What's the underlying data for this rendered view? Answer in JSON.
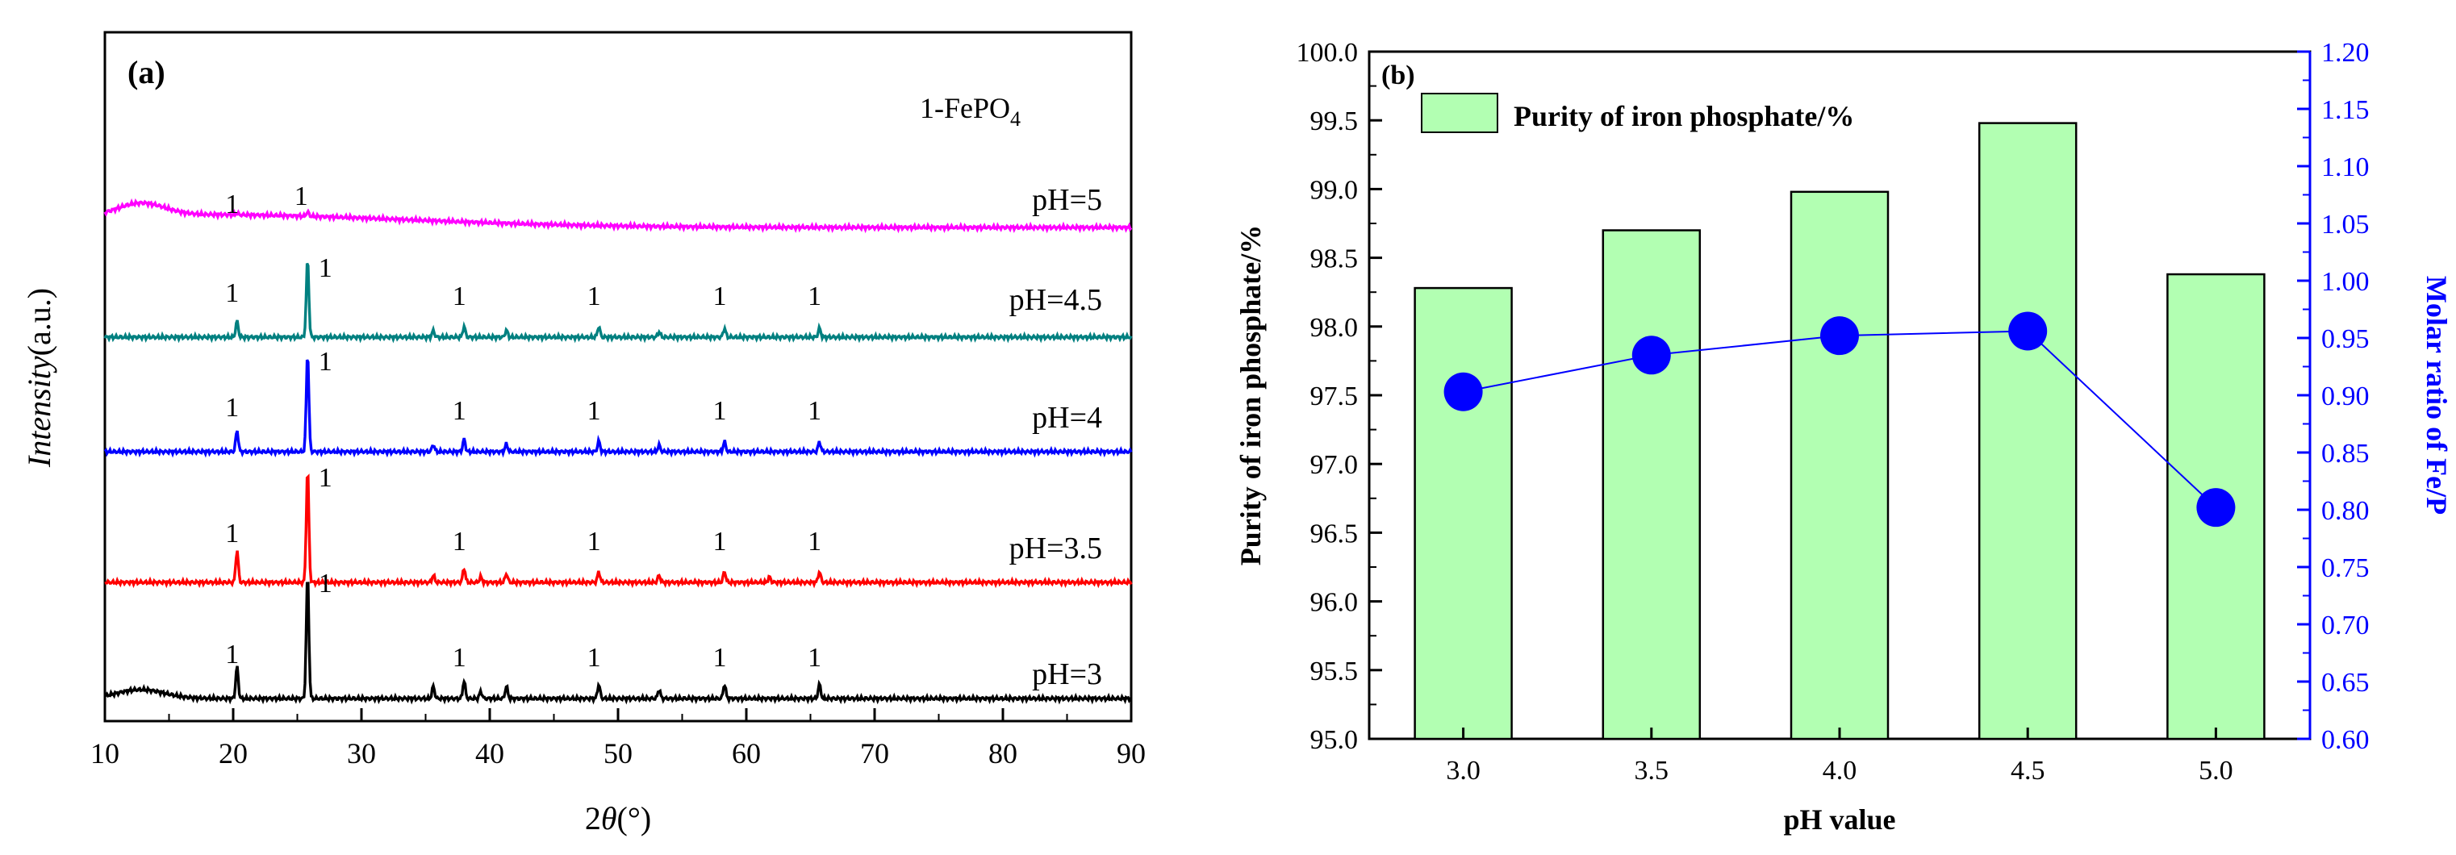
{
  "colors": {
    "bar_fill": "#b2ffb2",
    "bar_stroke": "#000000",
    "ratio_blue": "#0000ff",
    "axis_black": "#000000",
    "pH5": "#ff00ff",
    "pH4_5": "#008080",
    "pH4": "#0000ff",
    "pH3_5": "#ff0000",
    "pH3": "#000000"
  },
  "chart_data": [
    {
      "panel": "(a)",
      "type": "line",
      "title": "1-FePO4",
      "title_main": "1-FePO",
      "title_sub": "4",
      "xlabel_prefix": "2",
      "xlabel_symbol": "θ",
      "xlabel_suffix": "(°)",
      "ylabel_italic": "Intensity",
      "ylabel_suffix": "(a.u.)",
      "xlim": [
        10,
        90
      ],
      "xticks": [
        "10",
        "20",
        "30",
        "40",
        "50",
        "60",
        "70",
        "80",
        "90"
      ],
      "peak_label": "1",
      "series": [
        {
          "name": "pH=5",
          "baseline": 0.9,
          "amorphous_hump": 0.35,
          "peaks": [
            {
              "x": 20.3,
              "h": 0.05
            },
            {
              "x": 25.8,
              "h": 0.12
            }
          ],
          "peak_labels_x": [
            20.3,
            25.8
          ]
        },
        {
          "name": "pH=4.5",
          "baseline": 0.0,
          "amorphous_hump": 0.0,
          "peaks": [
            {
              "x": 20.3,
              "h": 0.45
            },
            {
              "x": 25.8,
              "h": 2.2
            },
            {
              "x": 35.6,
              "h": 0.18
            },
            {
              "x": 38.0,
              "h": 0.3
            },
            {
              "x": 41.3,
              "h": 0.2
            },
            {
              "x": 48.5,
              "h": 0.3
            },
            {
              "x": 53.2,
              "h": 0.15
            },
            {
              "x": 58.3,
              "h": 0.25
            },
            {
              "x": 65.7,
              "h": 0.25
            }
          ],
          "peak_labels_x": [
            20.3,
            25.8,
            38.0,
            48.5,
            58.3,
            65.7
          ]
        },
        {
          "name": "pH=4",
          "baseline": 0.0,
          "amorphous_hump": 0.0,
          "peaks": [
            {
              "x": 20.3,
              "h": 0.6
            },
            {
              "x": 25.8,
              "h": 2.8
            },
            {
              "x": 35.6,
              "h": 0.2
            },
            {
              "x": 38.0,
              "h": 0.35
            },
            {
              "x": 41.3,
              "h": 0.22
            },
            {
              "x": 48.5,
              "h": 0.3
            },
            {
              "x": 53.2,
              "h": 0.18
            },
            {
              "x": 58.3,
              "h": 0.28
            },
            {
              "x": 65.7,
              "h": 0.28
            }
          ],
          "peak_labels_x": [
            20.3,
            25.8,
            38.0,
            48.5,
            58.3,
            65.7
          ]
        },
        {
          "name": "pH=3.5",
          "baseline": 0.0,
          "amorphous_hump": 0.0,
          "peaks": [
            {
              "x": 20.3,
              "h": 0.9
            },
            {
              "x": 25.8,
              "h": 3.2
            },
            {
              "x": 35.6,
              "h": 0.2
            },
            {
              "x": 38.0,
              "h": 0.4
            },
            {
              "x": 39.3,
              "h": 0.15
            },
            {
              "x": 41.3,
              "h": 0.25
            },
            {
              "x": 48.5,
              "h": 0.3
            },
            {
              "x": 53.2,
              "h": 0.2
            },
            {
              "x": 58.3,
              "h": 0.3
            },
            {
              "x": 61.8,
              "h": 0.15
            },
            {
              "x": 65.7,
              "h": 0.3
            }
          ],
          "peak_labels_x": [
            20.3,
            25.8,
            38.0,
            48.5,
            58.3,
            65.7
          ]
        },
        {
          "name": "pH=3",
          "baseline": 0.0,
          "amorphous_hump": 0.25,
          "peaks": [
            {
              "x": 20.3,
              "h": 0.9
            },
            {
              "x": 25.8,
              "h": 3.5
            },
            {
              "x": 35.6,
              "h": 0.35
            },
            {
              "x": 38.0,
              "h": 0.5
            },
            {
              "x": 39.3,
              "h": 0.2
            },
            {
              "x": 41.3,
              "h": 0.35
            },
            {
              "x": 48.5,
              "h": 0.4
            },
            {
              "x": 53.2,
              "h": 0.25
            },
            {
              "x": 58.3,
              "h": 0.4
            },
            {
              "x": 65.7,
              "h": 0.4
            }
          ],
          "peak_labels_x": [
            20.3,
            25.8,
            38.0,
            48.5,
            58.3,
            65.7
          ]
        }
      ]
    },
    {
      "panel": "(b)",
      "type": "bar",
      "categories": [
        "3.0",
        "3.5",
        "4.0",
        "4.5",
        "5.0"
      ],
      "xlabel": "pH value",
      "ylabel": "Purity of iron phosphate/%",
      "ylim": [
        95.0,
        100.0
      ],
      "yticks": [
        "95.0",
        "95.5",
        "96.0",
        "96.5",
        "97.0",
        "97.5",
        "98.0",
        "98.5",
        "99.0",
        "99.5",
        "100.0"
      ],
      "legend": "Purity of iron phosphate/%",
      "legend_position": "top-left",
      "series": [
        {
          "name": "Purity of iron phosphate/%",
          "axis": "left",
          "values": [
            98.28,
            98.7,
            98.98,
            99.48,
            98.38
          ]
        },
        {
          "name": "Molar ratio of Fe/P",
          "axis": "right",
          "kind": "line-marker",
          "values": [
            0.903,
            0.935,
            0.952,
            0.956,
            0.802
          ]
        }
      ],
      "y2label": "Molar ratio of Fe/P",
      "y2lim": [
        0.6,
        1.2
      ],
      "y2ticks": [
        "0.60",
        "0.65",
        "0.70",
        "0.75",
        "0.80",
        "0.85",
        "0.90",
        "0.95",
        "1.00",
        "1.05",
        "1.10",
        "1.15",
        "1.20"
      ]
    }
  ]
}
